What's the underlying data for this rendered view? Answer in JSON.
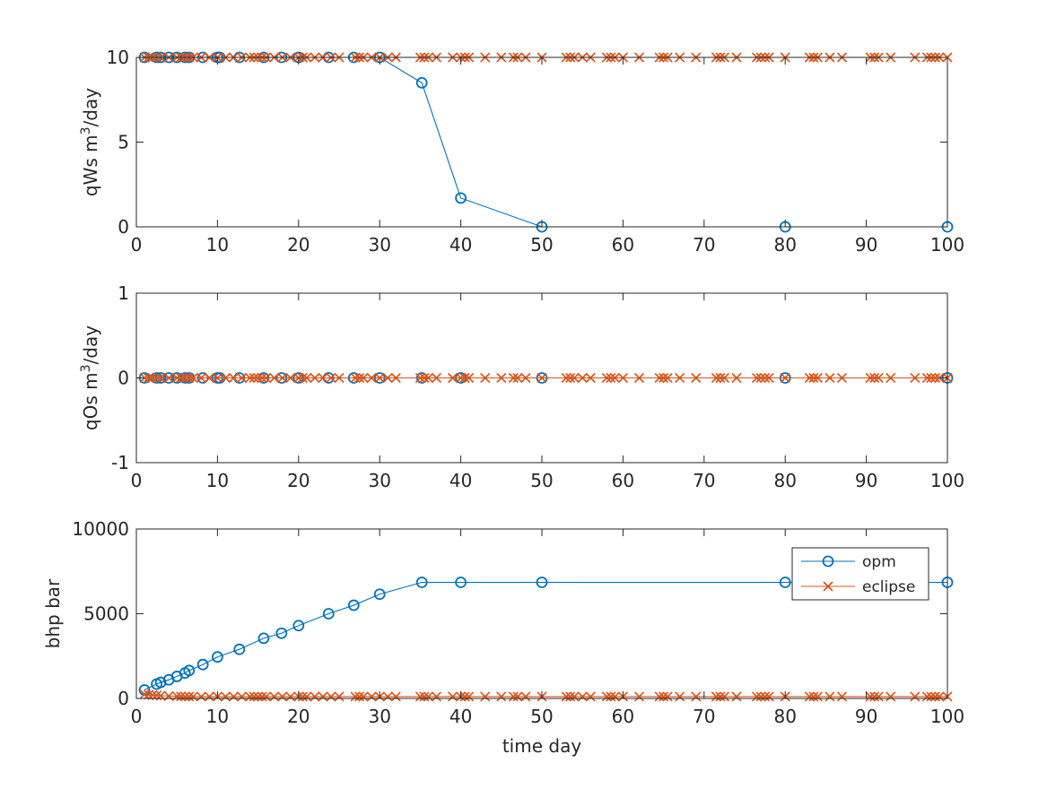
{
  "colors": {
    "opm": "#0072BD",
    "eclipse": "#D95319",
    "axis": "#262626"
  },
  "legend": {
    "entries": [
      "opm",
      "eclipse"
    ],
    "location": "northeast (bottom subplot)"
  },
  "chart_data": [
    {
      "type": "line",
      "ylabel_main": "qWs m",
      "ylabel_sup": "3",
      "ylabel_tail": "/day",
      "xlabel": "",
      "xlim": [
        0,
        100
      ],
      "ylim": [
        0,
        10
      ],
      "xticks": [
        0,
        10,
        20,
        30,
        40,
        50,
        60,
        70,
        80,
        90,
        100
      ],
      "yticks": [
        0,
        5,
        10
      ],
      "series": [
        {
          "name": "opm",
          "marker": "circle",
          "x": [
            1,
            2.5,
            3,
            4,
            5,
            6,
            6.5,
            8.2,
            10,
            10.3,
            12.7,
            15.7,
            17.9,
            20,
            23.7,
            26.8,
            30,
            35.2,
            40,
            50,
            80,
            100
          ],
          "y": [
            10,
            10,
            10,
            10,
            10,
            10,
            10,
            10,
            10,
            10,
            10,
            10,
            10,
            10,
            10,
            10,
            10,
            8.5,
            1.7,
            0,
            0,
            0
          ]
        },
        {
          "name": "eclipse",
          "marker": "x",
          "x": [
            1,
            1.5,
            2,
            2.5,
            3,
            4,
            5,
            5.5,
            6,
            6.5,
            7,
            8,
            9,
            10,
            11,
            12,
            13,
            14,
            14.5,
            15,
            15.5,
            16,
            17,
            18,
            19,
            20,
            20.5,
            21,
            22,
            23,
            24,
            25,
            27,
            27.5,
            28,
            29,
            30,
            31,
            32,
            35,
            35.5,
            36,
            37,
            39,
            40,
            40.5,
            41,
            43,
            45,
            46.5,
            47,
            48,
            50,
            53,
            53.5,
            54,
            55,
            56,
            58,
            58.5,
            59,
            60,
            62,
            64.5,
            65,
            65.5,
            67,
            69,
            71.5,
            72,
            72.5,
            74,
            76.5,
            77,
            77.5,
            78,
            80,
            83,
            83.5,
            84,
            85.5,
            87,
            90.5,
            91,
            91.5,
            93,
            96,
            97.5,
            98,
            98.5,
            99,
            100
          ],
          "y": [
            10,
            10,
            10,
            10,
            10,
            10,
            10,
            10,
            10,
            10,
            10,
            10,
            10,
            10,
            10,
            10,
            10,
            10,
            10,
            10,
            10,
            10,
            10,
            10,
            10,
            10,
            10,
            10,
            10,
            10,
            10,
            10,
            10,
            10,
            10,
            10,
            10,
            10,
            10,
            10,
            10,
            10,
            10,
            10,
            10,
            10,
            10,
            10,
            10,
            10,
            10,
            10,
            10,
            10,
            10,
            10,
            10,
            10,
            10,
            10,
            10,
            10,
            10,
            10,
            10,
            10,
            10,
            10,
            10,
            10,
            10,
            10,
            10,
            10,
            10,
            10,
            10,
            10,
            10,
            10,
            10,
            10,
            10,
            10,
            10,
            10,
            10,
            10,
            10,
            10,
            10,
            10
          ]
        }
      ]
    },
    {
      "type": "line",
      "ylabel_main": "qOs m",
      "ylabel_sup": "3",
      "ylabel_tail": "/day",
      "xlabel": "",
      "xlim": [
        0,
        100
      ],
      "ylim": [
        -1,
        1
      ],
      "xticks": [
        0,
        10,
        20,
        30,
        40,
        50,
        60,
        70,
        80,
        90,
        100
      ],
      "yticks": [
        -1,
        0,
        1
      ],
      "series": [
        {
          "name": "opm",
          "marker": "circle",
          "x": [
            1,
            2.5,
            3,
            4,
            5,
            6,
            6.5,
            8.2,
            10,
            10.3,
            12.7,
            15.7,
            17.9,
            20,
            23.7,
            26.8,
            30,
            35.2,
            40,
            50,
            80,
            100
          ],
          "y": [
            0,
            0,
            0,
            0,
            0,
            0,
            0,
            0,
            0,
            0,
            0,
            0,
            0,
            0,
            0,
            0,
            0,
            0,
            0,
            0,
            0,
            0
          ]
        },
        {
          "name": "eclipse",
          "marker": "x",
          "x": [
            1,
            1.5,
            2,
            2.5,
            3,
            4,
            5,
            5.5,
            6,
            6.5,
            7,
            8,
            9,
            10,
            11,
            12,
            13,
            14,
            14.5,
            15,
            15.5,
            16,
            17,
            18,
            19,
            20,
            20.5,
            21,
            22,
            23,
            24,
            25,
            27,
            27.5,
            28,
            29,
            30,
            31,
            32,
            35,
            35.5,
            36,
            37,
            39,
            40,
            40.5,
            41,
            43,
            45,
            46.5,
            47,
            48,
            50,
            53,
            53.5,
            54,
            55,
            56,
            58,
            58.5,
            59,
            60,
            62,
            64.5,
            65,
            65.5,
            67,
            69,
            71.5,
            72,
            72.5,
            74,
            76.5,
            77,
            77.5,
            78,
            80,
            83,
            83.5,
            84,
            85.5,
            87,
            90.5,
            91,
            91.5,
            93,
            96,
            97.5,
            98,
            98.5,
            99,
            100
          ],
          "y": [
            0,
            0,
            0,
            0,
            0,
            0,
            0,
            0,
            0,
            0,
            0,
            0,
            0,
            0,
            0,
            0,
            0,
            0,
            0,
            0,
            0,
            0,
            0,
            0,
            0,
            0,
            0,
            0,
            0,
            0,
            0,
            0,
            0,
            0,
            0,
            0,
            0,
            0,
            0,
            0,
            0,
            0,
            0,
            0,
            0,
            0,
            0,
            0,
            0,
            0,
            0,
            0,
            0,
            0,
            0,
            0,
            0,
            0,
            0,
            0,
            0,
            0,
            0,
            0,
            0,
            0,
            0,
            0,
            0,
            0,
            0,
            0,
            0,
            0,
            0,
            0,
            0,
            0,
            0,
            0,
            0,
            0,
            0,
            0,
            0,
            0,
            0,
            0,
            0,
            0,
            0,
            0
          ]
        }
      ]
    },
    {
      "type": "line",
      "ylabel_main": "bhp bar",
      "ylabel_sup": "",
      "ylabel_tail": "",
      "xlabel": "time day",
      "xlim": [
        0,
        100
      ],
      "ylim": [
        0,
        10000
      ],
      "xticks": [
        0,
        10,
        20,
        30,
        40,
        50,
        60,
        70,
        80,
        90,
        100
      ],
      "yticks": [
        0,
        5000,
        10000
      ],
      "series": [
        {
          "name": "opm",
          "marker": "circle",
          "x": [
            1,
            2.5,
            3,
            4,
            5,
            6,
            6.5,
            8.2,
            10,
            12.7,
            15.7,
            17.9,
            20,
            23.7,
            26.8,
            30,
            35.2,
            40,
            50,
            80,
            100
          ],
          "y": [
            500,
            850,
            950,
            1100,
            1300,
            1500,
            1650,
            2000,
            2450,
            2900,
            3550,
            3850,
            4300,
            5000,
            5500,
            6150,
            6850,
            6850,
            6850,
            6850,
            6850
          ]
        },
        {
          "name": "eclipse",
          "marker": "x",
          "x": [
            1,
            1.5,
            2,
            2.5,
            3,
            4,
            5,
            5.5,
            6,
            6.5,
            7,
            8,
            9,
            10,
            11,
            12,
            13,
            14,
            14.5,
            15,
            15.5,
            16,
            17,
            18,
            19,
            20,
            20.5,
            21,
            22,
            23,
            24,
            25,
            27,
            27.5,
            28,
            29,
            30,
            31,
            32,
            35,
            35.5,
            36,
            37,
            39,
            40,
            40.5,
            41,
            43,
            45,
            46.5,
            47,
            48,
            50,
            53,
            53.5,
            54,
            55,
            56,
            58,
            58.5,
            59,
            60,
            62,
            64.5,
            65,
            65.5,
            67,
            69,
            71.5,
            72,
            72.5,
            74,
            76.5,
            77,
            77.5,
            78,
            80,
            83,
            83.5,
            84,
            85.5,
            87,
            90.5,
            91,
            91.5,
            93,
            96,
            97.5,
            98,
            98.5,
            99,
            100
          ],
          "y": [
            250,
            220,
            200,
            180,
            160,
            140,
            130,
            120,
            110,
            110,
            110,
            110,
            110,
            110,
            110,
            110,
            110,
            110,
            110,
            110,
            110,
            110,
            110,
            110,
            110,
            110,
            110,
            110,
            110,
            110,
            110,
            110,
            110,
            110,
            110,
            110,
            110,
            110,
            110,
            110,
            110,
            110,
            110,
            110,
            110,
            110,
            110,
            110,
            110,
            110,
            110,
            110,
            110,
            110,
            110,
            110,
            110,
            110,
            110,
            110,
            110,
            110,
            110,
            110,
            110,
            110,
            110,
            110,
            110,
            110,
            110,
            110,
            110,
            110,
            110,
            110,
            110,
            110,
            110,
            110,
            110,
            110,
            110,
            110,
            110,
            110,
            110,
            110,
            110,
            110,
            110,
            110
          ]
        }
      ]
    }
  ]
}
